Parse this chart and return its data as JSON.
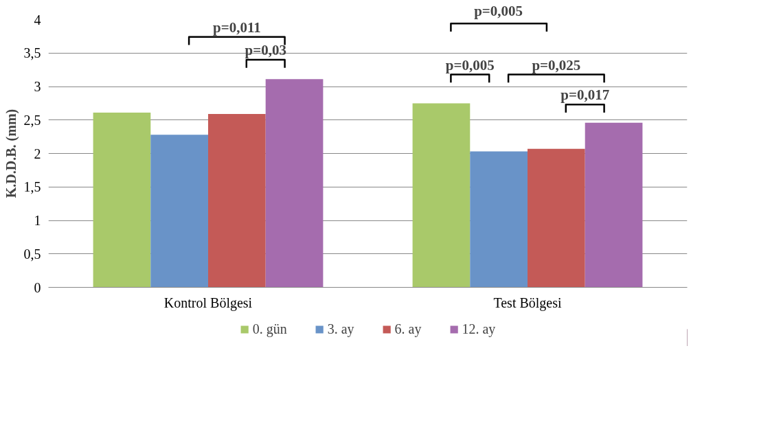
{
  "chart_data": {
    "type": "bar",
    "ylabel": "K.D.D.B. (mm)",
    "categories": [
      "Kontrol Bölgesi",
      "Test Bölgesi"
    ],
    "series": [
      {
        "name": "0. gün",
        "color": "#a9c96a",
        "values": [
          2.61,
          2.75
        ]
      },
      {
        "name": "3. ay",
        "color": "#6993c8",
        "values": [
          2.28,
          2.03
        ]
      },
      {
        "name": "6. ay",
        "color": "#c45a57",
        "values": [
          2.59,
          2.07
        ]
      },
      {
        "name": "12. ay",
        "color": "#a56cae",
        "values": [
          3.11,
          2.46
        ]
      }
    ],
    "ylim": [
      0,
      4
    ],
    "yticks": [
      0,
      {
        "value": 0.5,
        "label": "0,5"
      },
      1,
      {
        "value": 1.5,
        "label": "1,5"
      },
      2,
      {
        "value": 2.5,
        "label": "2,5"
      },
      3,
      {
        "value": 3.5,
        "label": "3,5"
      },
      4
    ],
    "grid": "y",
    "legend": "bottom",
    "annotations": [
      "p=0,011",
      "p=0,03",
      "p=0,005",
      "p=0,005",
      "p=0,025",
      "p=0,017"
    ]
  }
}
